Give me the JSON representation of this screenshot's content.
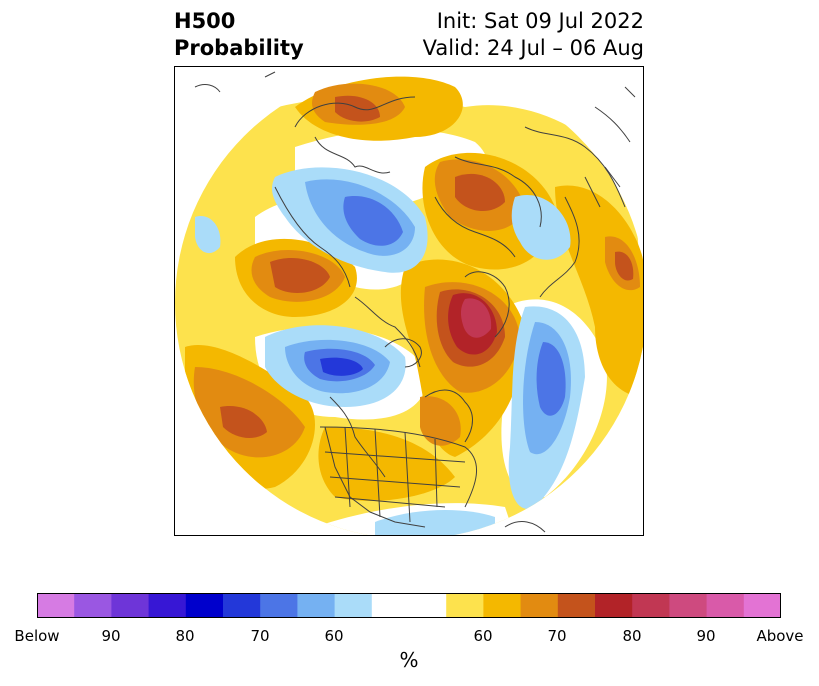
{
  "title": {
    "left_line1": "H500",
    "left_line2": "Probability",
    "right_line1": "Init: Sat 09 Jul 2022",
    "right_line2": "Valid: 24 Jul – 06 Aug"
  },
  "colorbar": {
    "colors": [
      "#d67be3",
      "#9a57e2",
      "#6e35d8",
      "#3717d5",
      "#0000cc",
      "#2338d9",
      "#4c75e6",
      "#75b1f2",
      "#aadcf9",
      "#ffffff",
      "#ffffff",
      "#fde24d",
      "#f4b800",
      "#e28b11",
      "#c4531c",
      "#b22328",
      "#c13753",
      "#ce4a7f",
      "#d95aa9",
      "#e373d4"
    ],
    "tick_labels": [
      "Below",
      "90",
      "80",
      "70",
      "60",
      "60",
      "70",
      "80",
      "90",
      "Above"
    ],
    "unit_label": "%"
  },
  "colors": {
    "coast": "#404040",
    "frame": "#000000"
  }
}
